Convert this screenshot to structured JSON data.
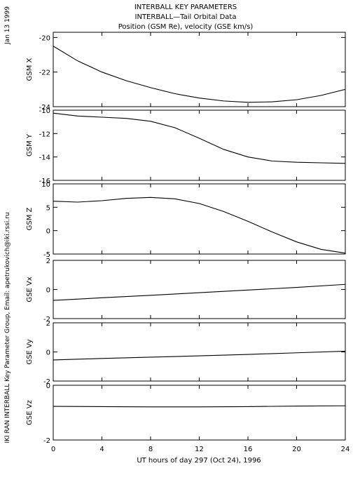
{
  "header": {
    "title_line1": "INTERBALL KEY PARAMETERS",
    "title_line2": "INTERBALL—Tail Orbital Data",
    "title_line3": "Position (GSM Re), velocity (GSE km/s)"
  },
  "side_labels": {
    "date": "Jan 13 1999",
    "credit": "IKI RAN INTERBALL Key Parameter Group, Email: apetrukovich@iki.rssi.ru"
  },
  "x_axis": {
    "label": "UT hours of day 297 (Oct 24), 1996",
    "range": [
      0,
      24
    ],
    "ticks": [
      0,
      4,
      8,
      12,
      16,
      20,
      24
    ]
  },
  "chart_data": [
    {
      "type": "line",
      "ylabel": "GSM X",
      "ylim": [
        -24,
        -19.7
      ],
      "yticks": [
        -20,
        -22,
        -24
      ],
      "series": [
        {
          "x": [
            0,
            2,
            4,
            6,
            8,
            10,
            12,
            14,
            16,
            18,
            20,
            22,
            24
          ],
          "values": [
            -20.5,
            -21.35,
            -22.0,
            -22.5,
            -22.9,
            -23.25,
            -23.5,
            -23.67,
            -23.75,
            -23.72,
            -23.6,
            -23.35,
            -23.0
          ]
        }
      ]
    },
    {
      "type": "line",
      "ylabel": "GSM Y",
      "ylim": [
        -16,
        -10
      ],
      "yticks": [
        -10,
        -12,
        -14,
        -16
      ],
      "series": [
        {
          "x": [
            0,
            2,
            4,
            6,
            8,
            10,
            12,
            14,
            16,
            18,
            20,
            22,
            24
          ],
          "values": [
            -10.25,
            -10.5,
            -10.6,
            -10.7,
            -10.95,
            -11.5,
            -12.4,
            -13.35,
            -14.0,
            -14.35,
            -14.45,
            -14.5,
            -14.55
          ]
        }
      ]
    },
    {
      "type": "line",
      "ylabel": "GSM Z",
      "ylim": [
        -5,
        10
      ],
      "yticks": [
        10,
        5,
        0,
        -5
      ],
      "series": [
        {
          "x": [
            0,
            2,
            4,
            6,
            8,
            10,
            12,
            14,
            16,
            18,
            20,
            22,
            24
          ],
          "values": [
            6.3,
            6.1,
            6.4,
            6.9,
            7.1,
            6.8,
            5.8,
            4.1,
            2.0,
            -0.3,
            -2.4,
            -4.0,
            -4.8
          ]
        }
      ]
    },
    {
      "type": "line",
      "ylabel": "GSE Vx",
      "ylim": [
        -2,
        2
      ],
      "yticks": [
        2,
        0,
        -2
      ],
      "series": [
        {
          "x": [
            0,
            4,
            8,
            12,
            16,
            20,
            24
          ],
          "values": [
            -0.75,
            -0.57,
            -0.4,
            -0.22,
            -0.04,
            0.14,
            0.35
          ]
        }
      ]
    },
    {
      "type": "line",
      "ylabel": "GSE Vy",
      "ylim": [
        -2,
        2
      ],
      "yticks": [
        2,
        0,
        -2
      ],
      "series": [
        {
          "x": [
            0,
            4,
            8,
            12,
            16,
            20,
            24
          ],
          "values": [
            -0.55,
            -0.45,
            -0.36,
            -0.27,
            -0.17,
            -0.06,
            0.05
          ]
        }
      ]
    },
    {
      "type": "line",
      "ylabel": "GSE Vz",
      "ylim": [
        -2,
        0
      ],
      "yticks": [
        0,
        -2
      ],
      "series": [
        {
          "x": [
            0,
            4,
            8,
            12,
            16,
            20,
            24
          ],
          "values": [
            -0.77,
            -0.78,
            -0.79,
            -0.79,
            -0.78,
            -0.76,
            -0.75
          ]
        }
      ]
    }
  ]
}
